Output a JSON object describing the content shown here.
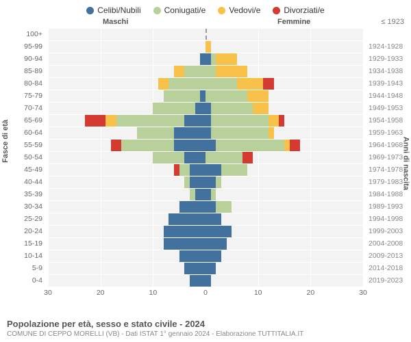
{
  "chart": {
    "type": "population-pyramid",
    "title": "Popolazione per età, sesso e stato civile - 2024",
    "subtitle": "COMUNE DI CEPPO MORELLI (VB) - Dati ISTAT 1° gennaio 2024 - Elaborazione TUTTITALIA.IT",
    "legend": [
      {
        "label": "Celibi/Nubili",
        "color": "#41719c"
      },
      {
        "label": "Coniugati/e",
        "color": "#b8d19a"
      },
      {
        "label": "Vedovi/e",
        "color": "#f8c24a"
      },
      {
        "label": "Divorziati/e",
        "color": "#d43a2f"
      }
    ],
    "male_label": "Maschi",
    "female_label": "Femmine",
    "y_left_label": "Fasce di età",
    "y_right_label": "Anni di nascita",
    "x_max": 30,
    "x_ticks": [
      30,
      20,
      10,
      0,
      10,
      20,
      30
    ],
    "background_color": "#f3f3f3",
    "grid_color": "#ffffff",
    "rows": [
      {
        "age": "100+",
        "birth": "≤ 1923",
        "male": [
          0,
          0,
          0,
          0
        ],
        "female": [
          0,
          0,
          0,
          0
        ]
      },
      {
        "age": "95-99",
        "birth": "1924-1928",
        "male": [
          0,
          0,
          0,
          0
        ],
        "female": [
          0,
          0,
          1,
          0
        ]
      },
      {
        "age": "90-94",
        "birth": "1929-1933",
        "male": [
          1,
          0,
          0,
          0
        ],
        "female": [
          1,
          1,
          4,
          0
        ]
      },
      {
        "age": "85-89",
        "birth": "1934-1938",
        "male": [
          0,
          4,
          2,
          0
        ],
        "female": [
          0,
          2,
          6,
          0
        ]
      },
      {
        "age": "80-84",
        "birth": "1939-1943",
        "male": [
          0,
          7,
          2,
          0
        ],
        "female": [
          0,
          6,
          5,
          2
        ]
      },
      {
        "age": "75-79",
        "birth": "1944-1948",
        "male": [
          1,
          7,
          0,
          0
        ],
        "female": [
          0,
          8,
          4,
          0
        ]
      },
      {
        "age": "70-74",
        "birth": "1949-1953",
        "male": [
          2,
          8,
          0,
          0
        ],
        "female": [
          1,
          8,
          3,
          0
        ]
      },
      {
        "age": "65-69",
        "birth": "1954-1958",
        "male": [
          4,
          13,
          2,
          4
        ],
        "female": [
          1,
          11,
          2,
          1
        ]
      },
      {
        "age": "60-64",
        "birth": "1959-1963",
        "male": [
          6,
          7,
          0,
          0
        ],
        "female": [
          1,
          11,
          1,
          0
        ]
      },
      {
        "age": "55-59",
        "birth": "1964-1968",
        "male": [
          6,
          10,
          0,
          2
        ],
        "female": [
          2,
          13,
          1,
          2
        ]
      },
      {
        "age": "50-54",
        "birth": "1969-1973",
        "male": [
          4,
          6,
          0,
          0
        ],
        "female": [
          0,
          7,
          0,
          2
        ]
      },
      {
        "age": "45-49",
        "birth": "1974-1978",
        "male": [
          3,
          2,
          0,
          1
        ],
        "female": [
          3,
          5,
          0,
          0
        ]
      },
      {
        "age": "40-44",
        "birth": "1979-1983",
        "male": [
          3,
          1,
          0,
          0
        ],
        "female": [
          2,
          1,
          0,
          0
        ]
      },
      {
        "age": "35-39",
        "birth": "1984-1988",
        "male": [
          2,
          1,
          0,
          0
        ],
        "female": [
          1,
          1,
          0,
          0
        ]
      },
      {
        "age": "30-34",
        "birth": "1989-1993",
        "male": [
          5,
          0,
          0,
          0
        ],
        "female": [
          2,
          3,
          0,
          0
        ]
      },
      {
        "age": "25-29",
        "birth": "1994-1998",
        "male": [
          7,
          0,
          0,
          0
        ],
        "female": [
          3,
          0,
          0,
          0
        ]
      },
      {
        "age": "20-24",
        "birth": "1999-2003",
        "male": [
          8,
          0,
          0,
          0
        ],
        "female": [
          5,
          0,
          0,
          0
        ]
      },
      {
        "age": "15-19",
        "birth": "2004-2008",
        "male": [
          8,
          0,
          0,
          0
        ],
        "female": [
          4,
          0,
          0,
          0
        ]
      },
      {
        "age": "10-14",
        "birth": "2009-2013",
        "male": [
          5,
          0,
          0,
          0
        ],
        "female": [
          3,
          0,
          0,
          0
        ]
      },
      {
        "age": "5-9",
        "birth": "2014-2018",
        "male": [
          4,
          0,
          0,
          0
        ],
        "female": [
          2,
          0,
          0,
          0
        ]
      },
      {
        "age": "0-4",
        "birth": "2019-2023",
        "male": [
          3,
          0,
          0,
          0
        ],
        "female": [
          1,
          0,
          0,
          0
        ]
      }
    ]
  }
}
